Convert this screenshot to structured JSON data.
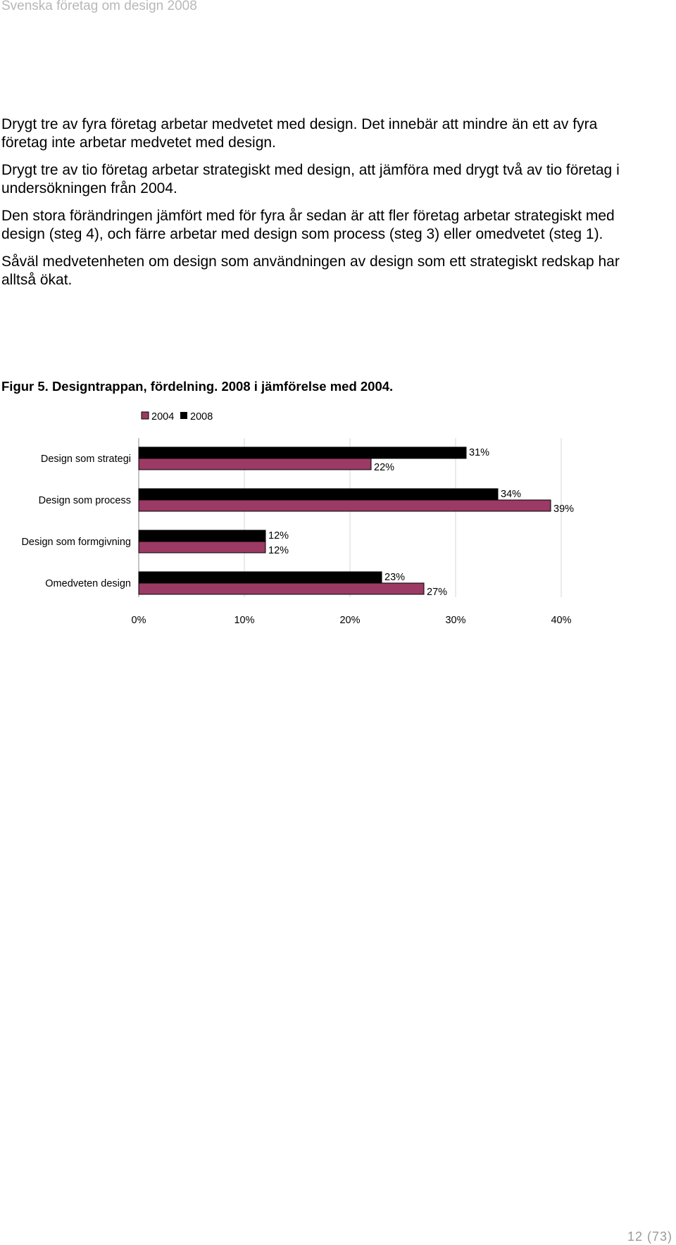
{
  "header": {
    "title": "Svenska företag om design 2008"
  },
  "paragraphs": [
    "Drygt tre av fyra företag arbetar medvetet med design. Det innebär att mindre än ett av fyra företag inte arbetar medvetet med design.",
    "Drygt tre av tio företag arbetar strategiskt med design, att jämföra med drygt två av tio företag i undersökningen från 2004.",
    "Den stora förändringen jämfört med för fyra år sedan är att fler företag arbetar strategiskt med design (steg 4), och färre arbetar med design som process (steg 3) eller omedvetet (steg 1).",
    "Såväl medvetenheten om design som användningen av design som ett strategiskt redskap har alltså ökat."
  ],
  "figure": {
    "caption": "Figur 5. Designtrappan, fördelning. 2008 i jämförelse med 2004."
  },
  "chart_data": {
    "type": "bar",
    "orientation": "horizontal",
    "categories": [
      "Design som strategi",
      "Design som process",
      "Design som formgivning",
      "Omedveten design"
    ],
    "series": [
      {
        "name": "2004",
        "color": "#9b3a64",
        "values": [
          22,
          39,
          12,
          27
        ],
        "labels": [
          "22%",
          "39%",
          "12%",
          "27%"
        ]
      },
      {
        "name": "2008",
        "color": "#000000",
        "values": [
          31,
          34,
          12,
          23
        ],
        "labels": [
          "31%",
          "34%",
          "12%",
          "23%"
        ]
      }
    ],
    "xlim": [
      0,
      40
    ],
    "xticks": [
      0,
      10,
      20,
      30,
      40
    ],
    "xtick_labels": [
      "0%",
      "10%",
      "20%",
      "30%",
      "40%"
    ],
    "grid": true,
    "legend": "top"
  },
  "footer": {
    "page": "12 (73)"
  }
}
